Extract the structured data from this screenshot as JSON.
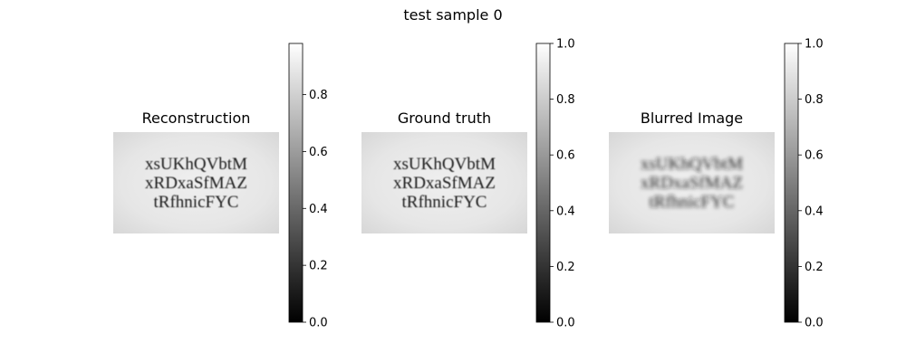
{
  "figure": {
    "title": "test sample 0"
  },
  "colors": {
    "image_background": "#e3e3e3",
    "text_ink": "#1c1c1c",
    "colormap": "gray"
  },
  "chart_data": [
    {
      "type": "heatmap",
      "title": "Reconstruction",
      "image_text": [
        "xsUKhQVbtM",
        "xRDxaSfMAZ",
        "tRfhnicFYC"
      ],
      "blurred": false,
      "colorbar": {
        "ticks": [
          "0.0",
          "0.2",
          "0.4",
          "0.6",
          "0.8"
        ],
        "range": [
          0,
          0.98
        ]
      }
    },
    {
      "type": "heatmap",
      "title": "Ground truth",
      "image_text": [
        "xsUKhQVbtM",
        "xRDxaSfMAZ",
        "tRfhnicFYC"
      ],
      "blurred": false,
      "colorbar": {
        "ticks": [
          "0.0",
          "0.2",
          "0.4",
          "0.6",
          "0.8",
          "1.0"
        ],
        "range": [
          0,
          1.0
        ]
      }
    },
    {
      "type": "heatmap",
      "title": "Blurred Image",
      "image_text": [
        "xsUKhQVbtM",
        "xRDxaSfMAZ",
        "tRfhnicFYC"
      ],
      "blurred": true,
      "colorbar": {
        "ticks": [
          "0.0",
          "0.2",
          "0.4",
          "0.6",
          "0.8",
          "1.0"
        ],
        "range": [
          0,
          1.0
        ]
      }
    }
  ]
}
